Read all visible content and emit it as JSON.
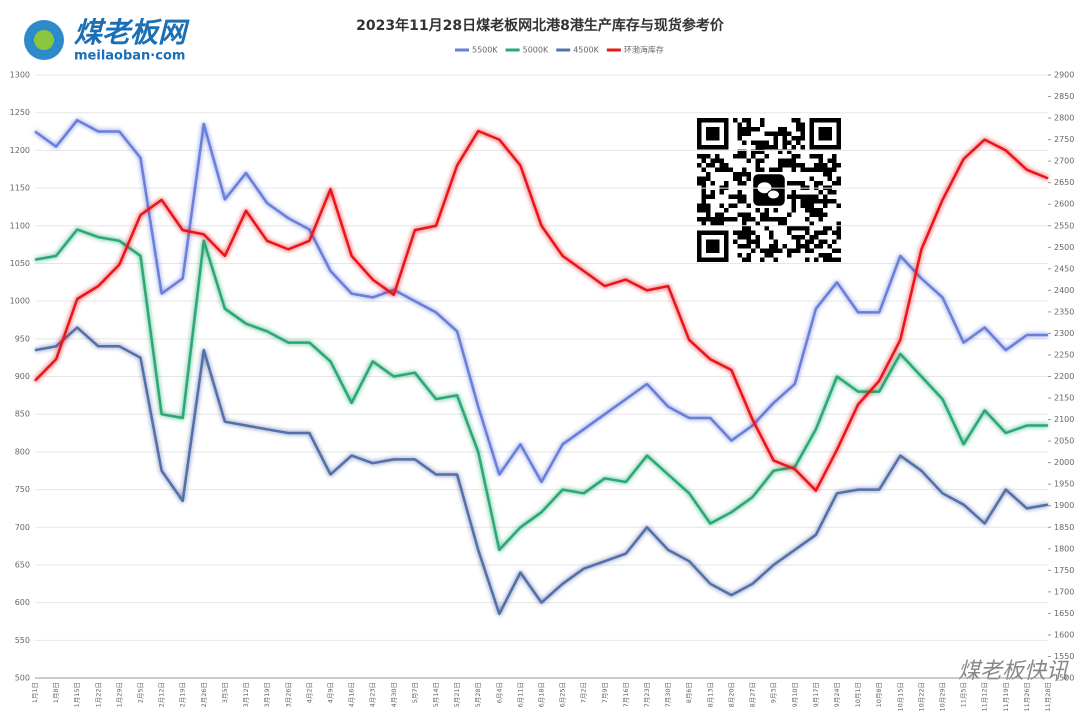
{
  "brand": {
    "name": "煤老板网",
    "site": "meilaoban·com",
    "watermark": "煤老板快讯"
  },
  "chart_data": {
    "type": "line",
    "title": "2023年11月28日煤老板网北港8港生产库存与现货参考价",
    "categories": [
      "1月1日",
      "1月8日",
      "1月15日",
      "1月22日",
      "1月29日",
      "2月5日",
      "2月12日",
      "2月19日",
      "2月26日",
      "3月5日",
      "3月12日",
      "3月19日",
      "3月26日",
      "4月2日",
      "4月9日",
      "4月16日",
      "4月23日",
      "4月30日",
      "5月7日",
      "5月14日",
      "5月21日",
      "5月28日",
      "6月4日",
      "6月11日",
      "6月18日",
      "6月25日",
      "7月2日",
      "7月9日",
      "7月16日",
      "7月23日",
      "7月30日",
      "8月6日",
      "8月13日",
      "8月20日",
      "8月27日",
      "9月3日",
      "9月10日",
      "9月17日",
      "9月24日",
      "10月1日",
      "10月8日",
      "10月15日",
      "10月22日",
      "10月29日",
      "11月5日",
      "11月12日",
      "11月19日",
      "11月26日",
      "11月28日"
    ],
    "series": [
      {
        "name": "5500K",
        "color": "#6a7fdb",
        "values": [
          1225,
          1205,
          1240,
          1225,
          1225,
          1190,
          1010,
          1030,
          1235,
          1135,
          1170,
          1130,
          1110,
          1095,
          1040,
          1010,
          1005,
          1015,
          1000,
          985,
          960,
          860,
          770,
          810,
          760,
          810,
          830,
          850,
          870,
          890,
          860,
          845,
          845,
          815,
          835,
          865,
          890,
          990,
          1025,
          985,
          985,
          1060,
          1030,
          1005,
          945,
          965,
          935,
          955,
          955
        ]
      },
      {
        "name": "5000K",
        "color": "#2aa876",
        "values": [
          1055,
          1060,
          1095,
          1085,
          1080,
          1060,
          850,
          845,
          1080,
          990,
          970,
          960,
          945,
          945,
          920,
          865,
          920,
          900,
          905,
          870,
          875,
          800,
          670,
          700,
          720,
          750,
          745,
          765,
          760,
          795,
          770,
          745,
          705,
          720,
          740,
          775,
          780,
          830,
          900,
          880,
          880,
          930,
          900,
          870,
          810,
          855,
          825,
          835,
          835
        ]
      },
      {
        "name": "4500K",
        "color": "#5470a8",
        "values": [
          935,
          940,
          965,
          940,
          940,
          925,
          775,
          735,
          935,
          840,
          835,
          830,
          825,
          825,
          770,
          795,
          785,
          790,
          790,
          770,
          770,
          670,
          585,
          640,
          600,
          625,
          645,
          655,
          665,
          700,
          670,
          655,
          625,
          610,
          625,
          650,
          670,
          690,
          745,
          750,
          750,
          795,
          775,
          745,
          730,
          705,
          750,
          725,
          730
        ]
      },
      {
        "name": "环渤海库存",
        "color": "#e8171a",
        "axis": "y2",
        "values": [
          2190,
          2240,
          2380,
          2410,
          2460,
          2575,
          2610,
          2540,
          2530,
          2480,
          2585,
          2515,
          2495,
          2515,
          2635,
          2480,
          2425,
          2390,
          2540,
          2550,
          2690,
          2770,
          2750,
          2690,
          2550,
          2480,
          2445,
          2410,
          2425,
          2400,
          2410,
          2285,
          2240,
          2215,
          2100,
          2005,
          1985,
          1935,
          2030,
          2135,
          2190,
          2285,
          2495,
          2610,
          2705,
          2750,
          2725,
          2680,
          2660
        ]
      }
    ],
    "ylim": [
      500,
      1300
    ],
    "yticks": [
      500,
      550,
      600,
      650,
      700,
      750,
      800,
      850,
      900,
      950,
      1000,
      1050,
      1100,
      1150,
      1200,
      1250,
      1300
    ],
    "y2lim": [
      1500,
      2900
    ],
    "y2ticks": [
      1500,
      1550,
      1600,
      1650,
      1700,
      1750,
      1800,
      1850,
      1900,
      1950,
      2000,
      2050,
      2100,
      2150,
      2200,
      2250,
      2300,
      2350,
      2400,
      2450,
      2500,
      2550,
      2600,
      2650,
      2700,
      2750,
      2800,
      2850,
      2900
    ],
    "grid": true
  }
}
